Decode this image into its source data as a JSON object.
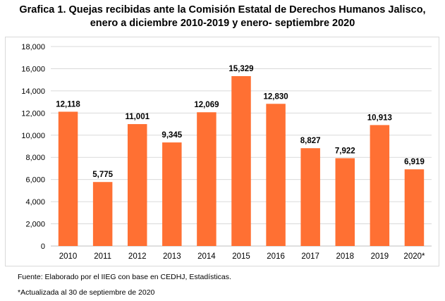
{
  "title_line1": "Grafica 1. Quejas recibidas ante la Comisión Estatal de Derechos Humanos Jalisco,",
  "title_line2": "enero a diciembre 2010-2019 y enero- septiembre 2020",
  "source_note": "Fuente: Elaborado por el IIEG con base en CEDHJ, Estadísticas.",
  "footnote": "*Actualizada al 30 de septiembre de 2020",
  "chart_data": {
    "type": "bar",
    "title": "Grafica 1. Quejas recibidas ante la Comisión Estatal de Derechos Humanos Jalisco, enero a diciembre 2010-2019 y enero- septiembre 2020",
    "categories": [
      "2010",
      "2011",
      "2012",
      "2013",
      "2014",
      "2015",
      "2016",
      "2017",
      "2018",
      "2019",
      "2020*"
    ],
    "values": [
      12118,
      5775,
      11001,
      9345,
      12069,
      15329,
      12830,
      8827,
      7922,
      10913,
      6919
    ],
    "data_labels": [
      "12,118",
      "5,775",
      "11,001",
      "9,345",
      "12,069",
      "15,329",
      "12,830",
      "8,827",
      "7,922",
      "10,913",
      "6,919"
    ],
    "yticks": [
      "0",
      "2,000",
      "4,000",
      "6,000",
      "8,000",
      "10,000",
      "12,000",
      "14,000",
      "16,000",
      "18,000"
    ],
    "ylim": [
      0,
      18000
    ],
    "xlabel": "",
    "ylabel": "",
    "grid": true,
    "legend": "none",
    "bar_color": "#ff7033",
    "grid_color": "#d9d9d9"
  }
}
